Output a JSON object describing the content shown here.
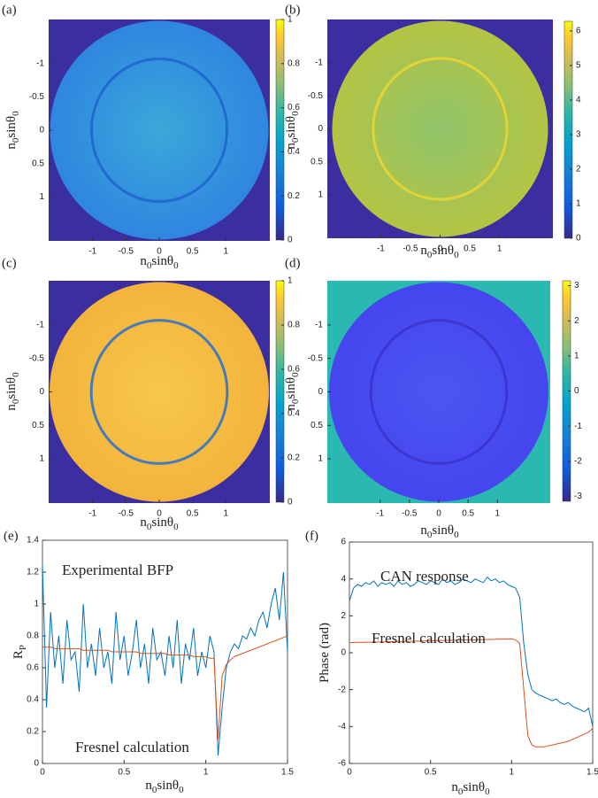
{
  "chart_data": [
    {
      "type": "heatmap",
      "panel_label": "(a)",
      "xlim": [
        -1.66,
        1.66
      ],
      "ylim": [
        1.66,
        -1.66
      ],
      "xticks": [
        -1,
        -0.5,
        0,
        0.5,
        1
      ],
      "yticks": [
        -1,
        -0.5,
        0,
        0.5,
        1
      ],
      "xlabel": [
        {
          "text": "n"
        },
        {
          "sub": "0"
        },
        {
          "text": "sinθ"
        },
        {
          "sub": "0"
        }
      ],
      "ylabel": [
        {
          "text": "n"
        },
        {
          "sub": "0"
        },
        {
          "text": "sinθ"
        },
        {
          "sub": "0"
        }
      ],
      "clim": [
        0,
        1
      ],
      "cticks": [
        0,
        0.2,
        0.4,
        0.6,
        0.8,
        1
      ],
      "colors": {
        "outside": "#3b2ea0",
        "disc": "#2f86e0",
        "center": "#3aa8d8",
        "ring": "#1e5fd0"
      }
    },
    {
      "type": "heatmap",
      "panel_label": "(b)",
      "xlim": [
        -1.9,
        1.9
      ],
      "ylim": [
        1.66,
        -1.66
      ],
      "xticks": [
        -1,
        -0.5,
        0,
        0.5,
        1
      ],
      "yticks": [
        -1,
        -0.5,
        0,
        0.5,
        1
      ],
      "xlabel": [
        {
          "text": "n"
        },
        {
          "sub": "0"
        },
        {
          "text": "sinθ"
        },
        {
          "sub": "0"
        }
      ],
      "ylabel": [
        {
          "text": "n"
        },
        {
          "sub": "0"
        },
        {
          "text": "sinθ"
        },
        {
          "sub": "0"
        }
      ],
      "clim": [
        0,
        6.28
      ],
      "cticks": [
        0,
        1,
        2,
        3,
        4,
        5,
        6
      ],
      "colors": {
        "outside": "#3b2ea0",
        "disc": "#b4c444",
        "center": "#8fc46a",
        "ring": "#f2d830"
      }
    },
    {
      "type": "heatmap",
      "panel_label": "(c)",
      "xlim": [
        -1.66,
        1.66
      ],
      "ylim": [
        1.66,
        -1.66
      ],
      "xticks": [
        -1,
        -0.5,
        0,
        0.5,
        1
      ],
      "yticks": [
        -1,
        -0.5,
        0,
        0.5,
        1
      ],
      "xlabel": [
        {
          "text": "n"
        },
        {
          "sub": "0"
        },
        {
          "text": "sinθ"
        },
        {
          "sub": "0"
        }
      ],
      "ylabel": [
        {
          "text": "n"
        },
        {
          "sub": "0"
        },
        {
          "text": "sinθ"
        },
        {
          "sub": "0"
        }
      ],
      "clim": [
        0,
        1
      ],
      "cticks": [
        0,
        0.2,
        0.4,
        0.6,
        0.8,
        1
      ],
      "colors": {
        "outside": "#3b2ea0",
        "disc": "#f4b43c",
        "center": "#f6c84a",
        "ring": "#1a6ad8"
      }
    },
    {
      "type": "heatmap",
      "panel_label": "(d)",
      "xlim": [
        -1.9,
        1.9
      ],
      "ylim": [
        1.66,
        -1.66
      ],
      "xticks": [
        -1,
        -0.5,
        0,
        0.5,
        1
      ],
      "yticks": [
        -1,
        -0.5,
        0,
        0.5,
        1
      ],
      "xlabel": [
        {
          "text": "n"
        },
        {
          "sub": "0"
        },
        {
          "text": "sinθ"
        },
        {
          "sub": "0"
        }
      ],
      "ylabel": [
        {
          "text": "n"
        },
        {
          "sub": "0"
        },
        {
          "text": "sinθ"
        },
        {
          "sub": "0"
        }
      ],
      "clim": [
        -3.14,
        3.14
      ],
      "cticks": [
        -3,
        -2,
        -1,
        0,
        1,
        2,
        3
      ],
      "colors": {
        "outside": "#2ab8b0",
        "disc": "#4646ee",
        "center": "#4a56f2",
        "ring": "#3a30c8"
      }
    },
    {
      "type": "line",
      "panel_label": "(e)",
      "xlim": [
        0,
        1.5
      ],
      "ylim": [
        0,
        1.4
      ],
      "xticks": [
        0,
        0.5,
        1,
        1.5
      ],
      "yticks": [
        0,
        0.2,
        0.4,
        0.6,
        0.8,
        1,
        1.2,
        1.4
      ],
      "xlabel": [
        {
          "text": "n"
        },
        {
          "sub": "0"
        },
        {
          "text": "sinθ"
        },
        {
          "sub": "0"
        }
      ],
      "ylabel": [
        {
          "text": "R"
        },
        {
          "sub": "P"
        }
      ],
      "annotations": [
        "Experimental BFP",
        "Fresnel calculation"
      ],
      "x": [
        0,
        0.025,
        0.05,
        0.075,
        0.1,
        0.125,
        0.15,
        0.175,
        0.2,
        0.225,
        0.25,
        0.275,
        0.3,
        0.325,
        0.35,
        0.375,
        0.4,
        0.425,
        0.45,
        0.475,
        0.5,
        0.525,
        0.55,
        0.575,
        0.6,
        0.625,
        0.65,
        0.675,
        0.7,
        0.725,
        0.75,
        0.775,
        0.8,
        0.825,
        0.85,
        0.875,
        0.9,
        0.925,
        0.95,
        0.975,
        1,
        1.025,
        1.05,
        1.075,
        1.1,
        1.125,
        1.15,
        1.175,
        1.2,
        1.225,
        1.25,
        1.275,
        1.3,
        1.325,
        1.35,
        1.375,
        1.4,
        1.425,
        1.45,
        1.475,
        1.5
      ],
      "series": [
        {
          "color": "#0072bd",
          "values": [
            1.25,
            0.35,
            0.95,
            0.6,
            0.8,
            0.5,
            0.9,
            0.65,
            0.7,
            0.45,
            1.0,
            0.6,
            0.75,
            0.55,
            0.85,
            0.6,
            0.7,
            0.5,
            0.95,
            0.65,
            0.8,
            0.55,
            0.7,
            0.9,
            0.6,
            0.75,
            0.5,
            0.85,
            0.65,
            0.7,
            0.55,
            0.8,
            0.6,
            0.9,
            0.5,
            0.75,
            0.65,
            0.85,
            0.55,
            0.7,
            0.6,
            0.8,
            0.7,
            0.05,
            0.35,
            0.6,
            0.7,
            0.75,
            0.72,
            0.8,
            0.78,
            0.85,
            0.8,
            0.9,
            0.95,
            0.85,
            1.0,
            1.1,
            0.9,
            1.2,
            0.7
          ]
        },
        {
          "color": "#d95319",
          "values": [
            0.73,
            0.73,
            0.73,
            0.72,
            0.72,
            0.72,
            0.72,
            0.72,
            0.72,
            0.72,
            0.71,
            0.71,
            0.71,
            0.71,
            0.71,
            0.71,
            0.71,
            0.7,
            0.7,
            0.7,
            0.7,
            0.7,
            0.7,
            0.7,
            0.69,
            0.69,
            0.69,
            0.69,
            0.69,
            0.69,
            0.69,
            0.68,
            0.68,
            0.68,
            0.68,
            0.68,
            0.68,
            0.67,
            0.67,
            0.67,
            0.67,
            0.66,
            0.66,
            0.15,
            0.55,
            0.62,
            0.65,
            0.67,
            0.68,
            0.69,
            0.7,
            0.71,
            0.72,
            0.73,
            0.74,
            0.75,
            0.76,
            0.77,
            0.78,
            0.79,
            0.8
          ]
        }
      ]
    },
    {
      "type": "line",
      "panel_label": "(f)",
      "xlim": [
        0,
        1.5
      ],
      "ylim": [
        -6,
        6
      ],
      "xticks": [
        0,
        0.5,
        1,
        1.5
      ],
      "yticks": [
        -6,
        -4,
        -2,
        0,
        2,
        4,
        6
      ],
      "xlabel": [
        {
          "text": "n"
        },
        {
          "sub": "0"
        },
        {
          "text": "sinθ"
        },
        {
          "sub": "0"
        }
      ],
      "ylabel": [
        {
          "text": "Phase (rad)"
        }
      ],
      "annotations": [
        "CAN response",
        "Fresnel calculation"
      ],
      "x": [
        0,
        0.025,
        0.05,
        0.075,
        0.1,
        0.125,
        0.15,
        0.175,
        0.2,
        0.225,
        0.25,
        0.275,
        0.3,
        0.325,
        0.35,
        0.375,
        0.4,
        0.425,
        0.45,
        0.475,
        0.5,
        0.525,
        0.55,
        0.575,
        0.6,
        0.625,
        0.65,
        0.675,
        0.7,
        0.725,
        0.75,
        0.775,
        0.8,
        0.825,
        0.85,
        0.875,
        0.9,
        0.925,
        0.95,
        0.975,
        1,
        1.025,
        1.05,
        1.075,
        1.1,
        1.125,
        1.15,
        1.175,
        1.2,
        1.225,
        1.25,
        1.275,
        1.3,
        1.325,
        1.35,
        1.375,
        1.4,
        1.425,
        1.45,
        1.475,
        1.5
      ],
      "series": [
        {
          "color": "#0072bd",
          "values": [
            2.8,
            3.5,
            3.7,
            3.6,
            3.8,
            3.7,
            3.9,
            3.6,
            3.8,
            3.7,
            3.8,
            3.6,
            3.9,
            3.7,
            3.8,
            3.6,
            3.7,
            3.9,
            3.8,
            3.7,
            3.9,
            3.8,
            3.7,
            4.0,
            3.8,
            3.9,
            3.7,
            3.8,
            4.0,
            3.9,
            3.8,
            4.0,
            3.9,
            3.8,
            4.1,
            3.9,
            4.0,
            3.8,
            3.9,
            3.7,
            3.6,
            3.5,
            3.0,
            0.5,
            -1.2,
            -2.0,
            -2.2,
            -2.3,
            -2.4,
            -2.5,
            -2.6,
            -2.5,
            -2.7,
            -2.8,
            -2.7,
            -2.9,
            -3.0,
            -3.1,
            -3.2,
            -3.0,
            -4.0
          ]
        },
        {
          "color": "#d95319",
          "values": [
            0.55,
            0.55,
            0.56,
            0.56,
            0.57,
            0.57,
            0.58,
            0.58,
            0.59,
            0.59,
            0.6,
            0.6,
            0.61,
            0.61,
            0.62,
            0.62,
            0.63,
            0.63,
            0.64,
            0.64,
            0.65,
            0.65,
            0.66,
            0.66,
            0.67,
            0.67,
            0.68,
            0.68,
            0.69,
            0.69,
            0.7,
            0.7,
            0.71,
            0.71,
            0.72,
            0.72,
            0.73,
            0.73,
            0.74,
            0.74,
            0.75,
            0.7,
            0.5,
            -2.0,
            -4.5,
            -5.0,
            -5.1,
            -5.1,
            -5.1,
            -5.05,
            -5.0,
            -4.95,
            -4.9,
            -4.85,
            -4.8,
            -4.7,
            -4.6,
            -4.5,
            -4.4,
            -4.3,
            -4.1
          ]
        }
      ]
    }
  ]
}
